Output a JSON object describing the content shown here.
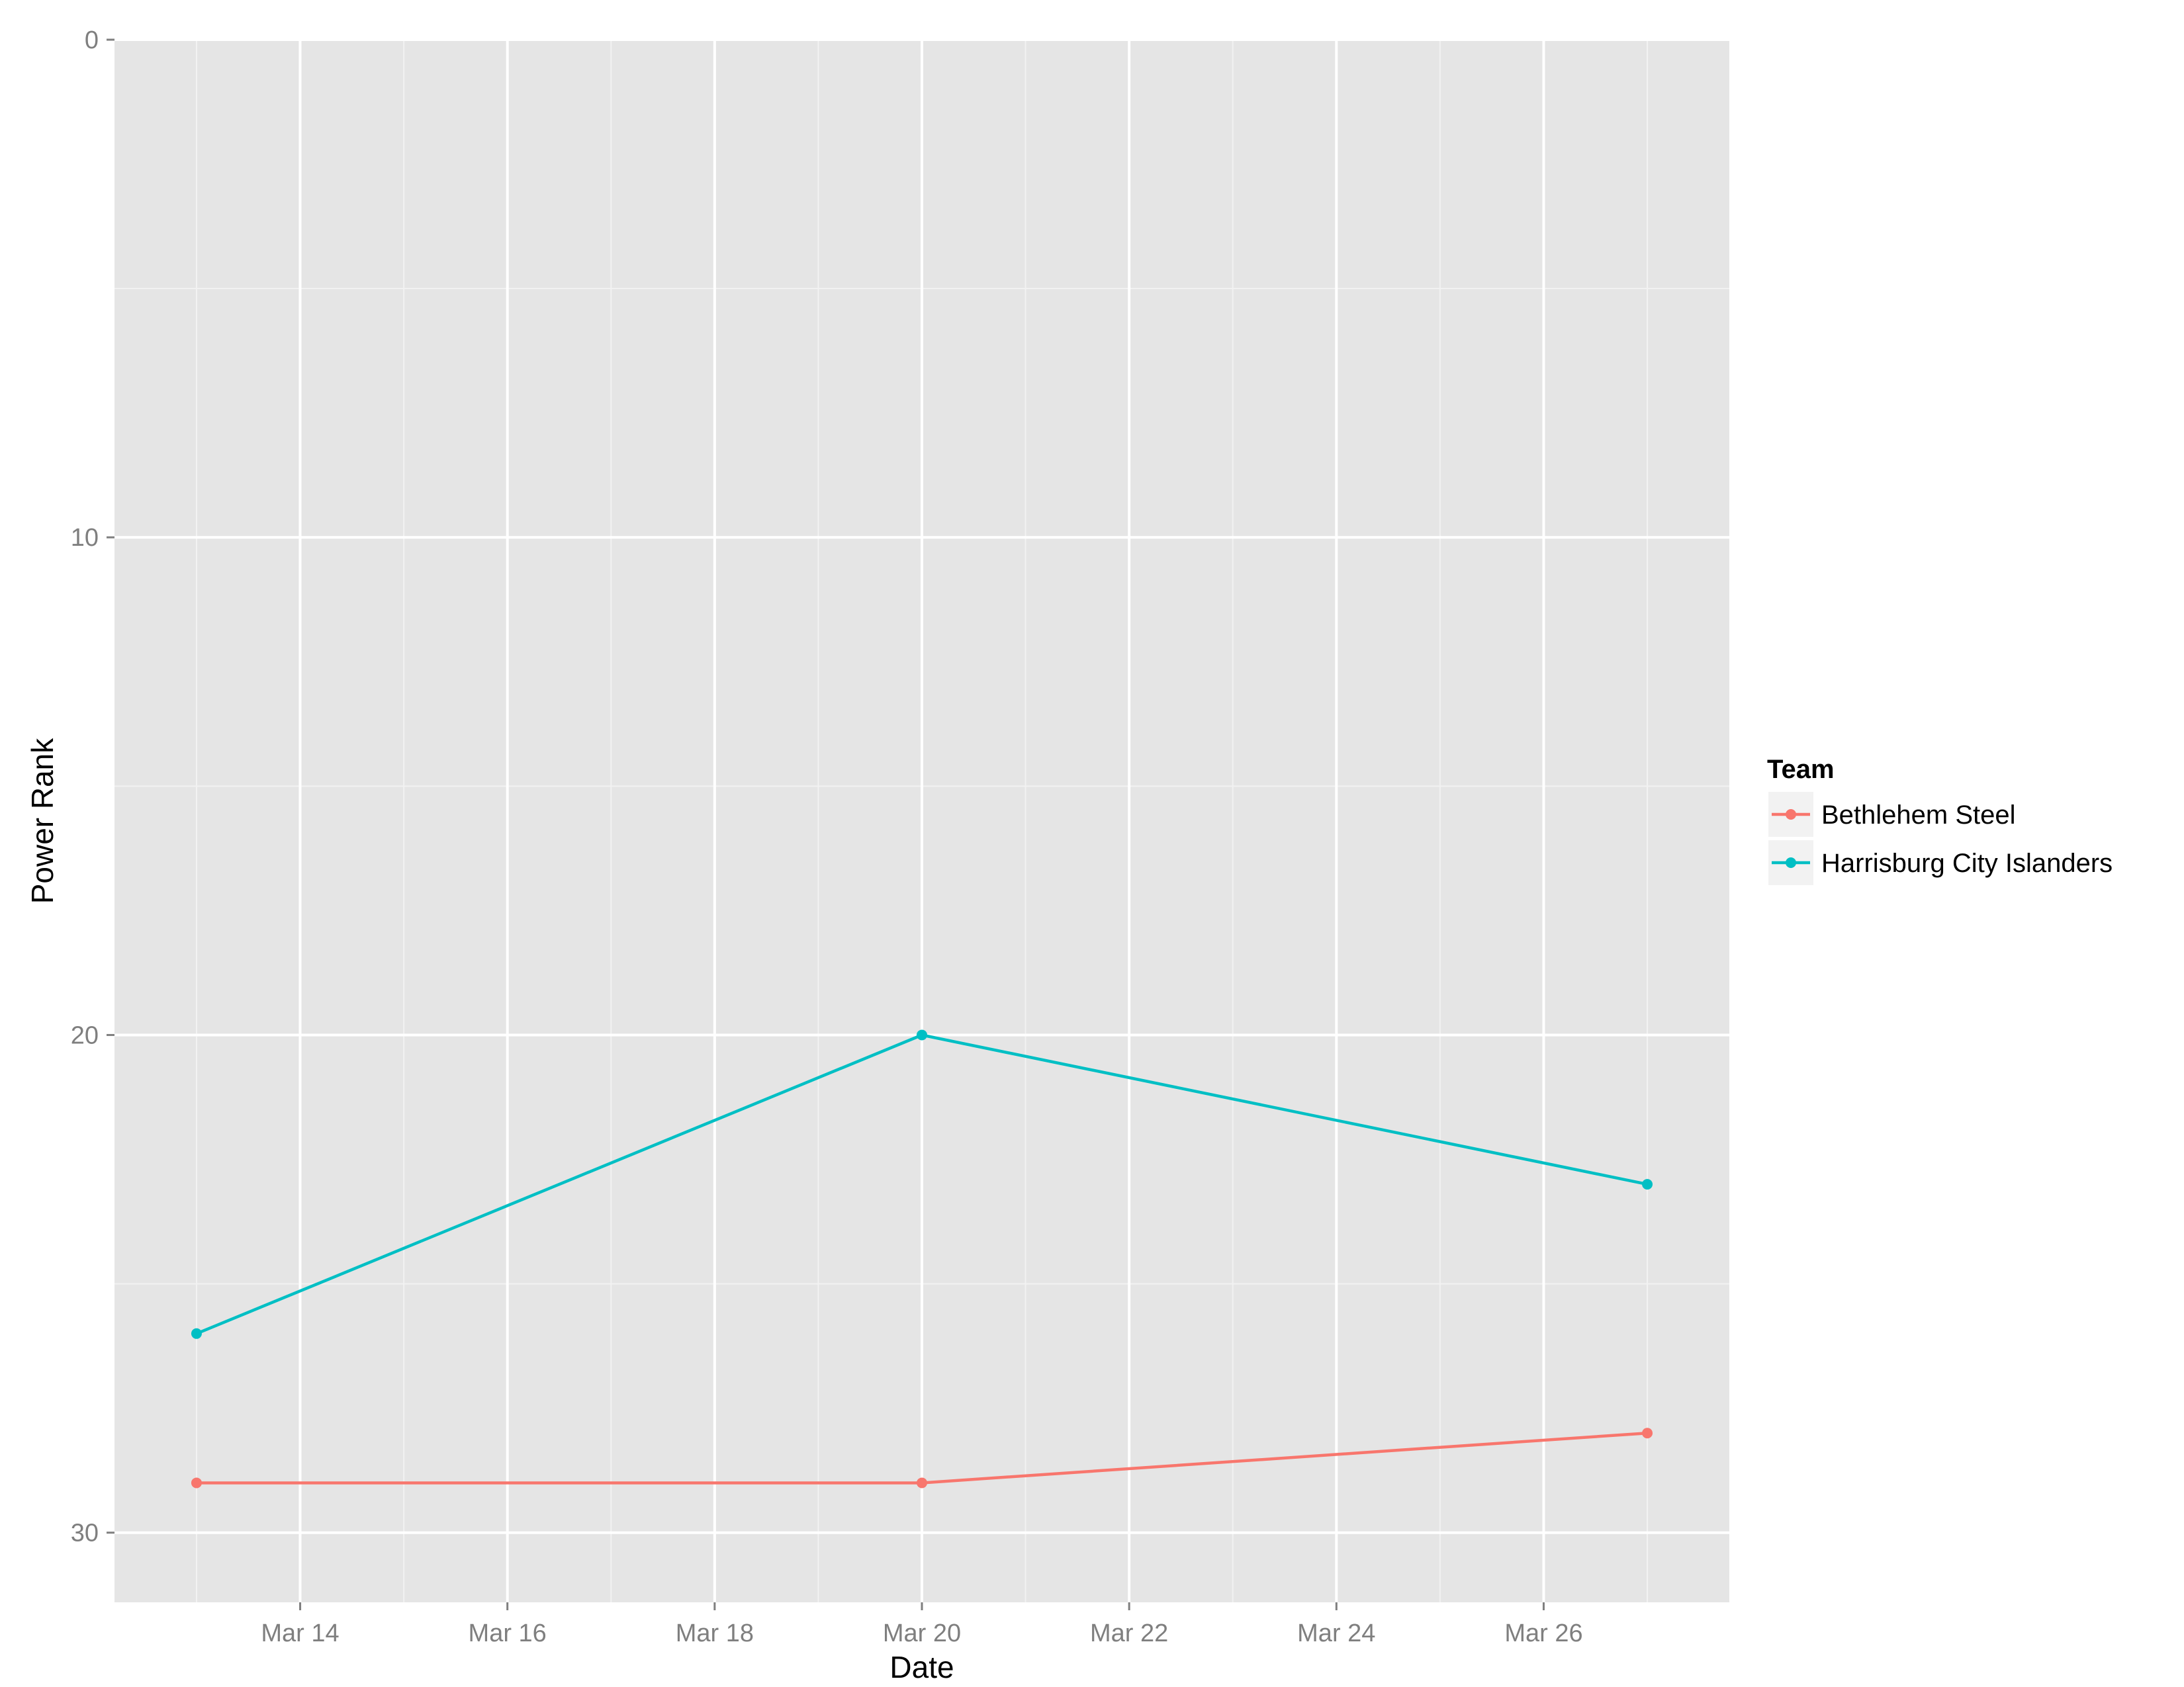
{
  "chart_data": {
    "type": "line",
    "title": "",
    "xlabel": "Date",
    "ylabel": "Power Rank",
    "y_reversed": true,
    "ylim": [
      0,
      31.4
    ],
    "xlim": [
      "2015-03-12 05:00",
      "2015-03-27 19:00"
    ],
    "x_ticks": [
      {
        "date": "2015-03-14",
        "label": "Mar 14"
      },
      {
        "date": "2015-03-16",
        "label": "Mar 16"
      },
      {
        "date": "2015-03-18",
        "label": "Mar 18"
      },
      {
        "date": "2015-03-20",
        "label": "Mar 20"
      },
      {
        "date": "2015-03-22",
        "label": "Mar 22"
      },
      {
        "date": "2015-03-24",
        "label": "Mar 24"
      },
      {
        "date": "2015-03-26",
        "label": "Mar 26"
      }
    ],
    "y_ticks": [
      0,
      10,
      20,
      30
    ],
    "grid": true,
    "panel_background": "#e5e5e5",
    "legend": {
      "title": "Team",
      "position": "right"
    },
    "series": [
      {
        "name": "Bethlehem Steel",
        "color": "#f8766d",
        "x": [
          "2015-03-13",
          "2015-03-20",
          "2015-03-27"
        ],
        "values": [
          29,
          29,
          28
        ]
      },
      {
        "name": "Harrisburg City Islanders",
        "color": "#00bfc4",
        "x": [
          "2015-03-13",
          "2015-03-20",
          "2015-03-27"
        ],
        "values": [
          26,
          20,
          23
        ]
      }
    ]
  }
}
